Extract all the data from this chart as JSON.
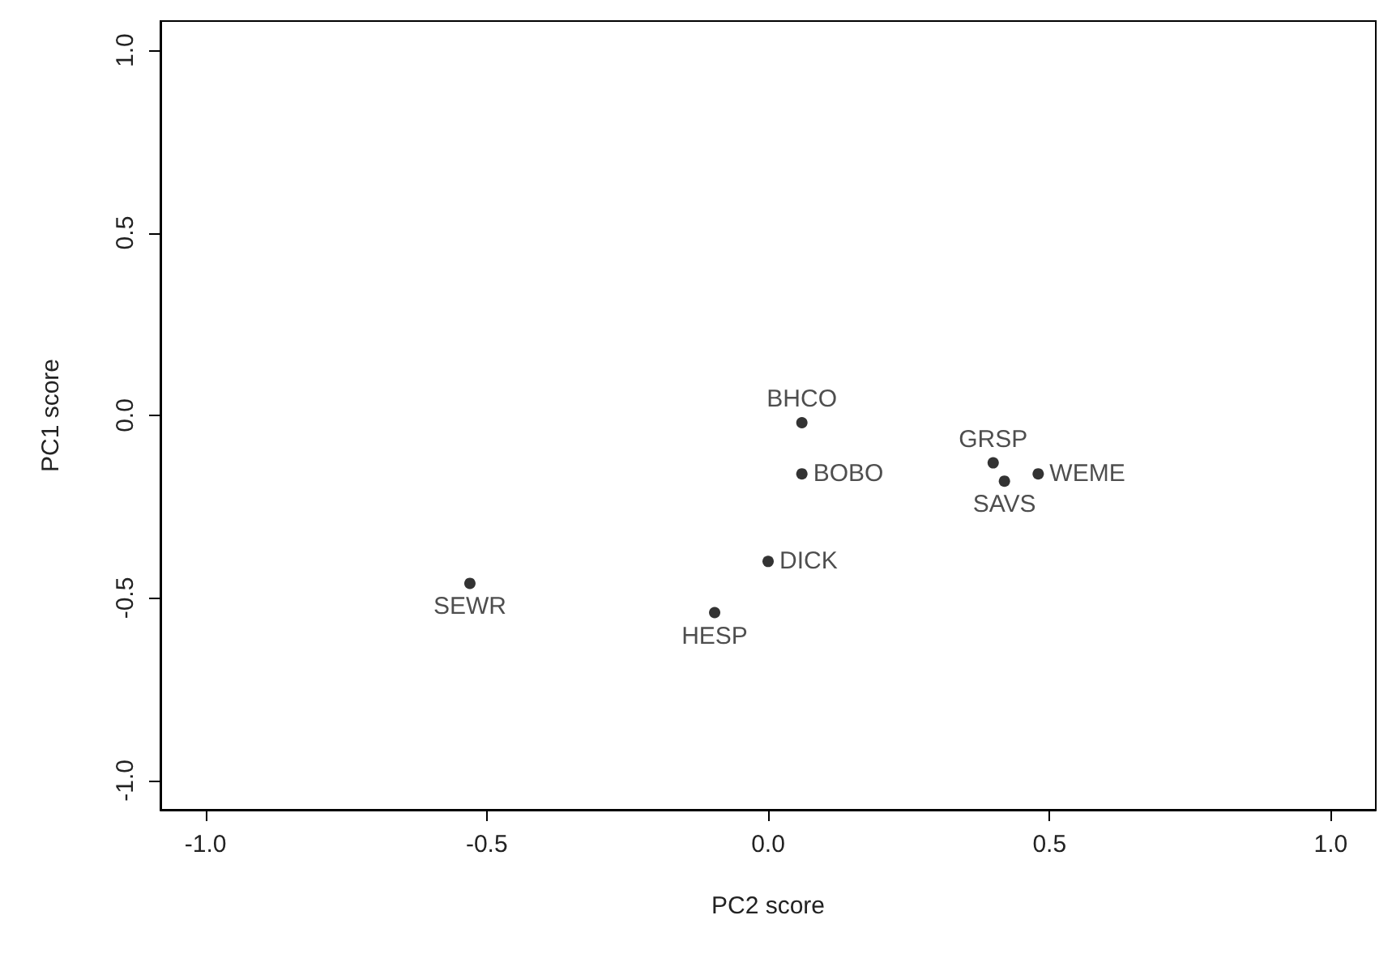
{
  "chart_data": {
    "type": "scatter",
    "xlabel": "PC2 score",
    "ylabel": "PC1 score",
    "x": [
      0.06,
      0.06,
      0.4,
      0.42,
      0.48,
      0.0,
      -0.095,
      -0.53
    ],
    "series": [
      {
        "color": "#000000",
        "values": [
          -0.02,
          -0.16,
          -0.13,
          -0.18,
          -0.16,
          -0.4,
          -0.54,
          -0.46
        ]
      }
    ],
    "annotations": [
      {
        "text": "BHCO",
        "x": 0.06,
        "y": -0.02
      },
      {
        "text": "BOBO",
        "x": 0.06,
        "y": -0.16
      },
      {
        "text": "GRSP",
        "x": 0.4,
        "y": -0.13
      },
      {
        "text": "SAVS",
        "x": 0.42,
        "y": -0.18
      },
      {
        "text": "WEME",
        "x": 0.48,
        "y": -0.16
      },
      {
        "text": "DICK",
        "x": 0.0,
        "y": -0.4
      },
      {
        "text": "HESP",
        "x": -0.095,
        "y": -0.54
      },
      {
        "text": "SEWR",
        "x": -0.53,
        "y": -0.46
      }
    ],
    "xlim": [
      -1.08,
      1.08
    ],
    "ylim": [
      -1.08,
      1.08
    ],
    "xticks": [
      {
        "value": -1,
        "label": "-1.0"
      },
      {
        "value": -0.5,
        "label": "-0.5"
      },
      {
        "value": 0,
        "label": "0.0"
      },
      {
        "value": 0.5,
        "label": "0.5"
      },
      {
        "value": 1,
        "label": "1.0"
      }
    ],
    "yticks": [
      {
        "value": -1,
        "label": "-1.0"
      },
      {
        "value": -0.5,
        "label": "-0.5"
      },
      {
        "value": 0,
        "label": "0.0"
      },
      {
        "value": 0.5,
        "label": "0.5"
      },
      {
        "value": 1,
        "label": "1.0"
      }
    ],
    "grid": false,
    "marker": "circle"
  }
}
